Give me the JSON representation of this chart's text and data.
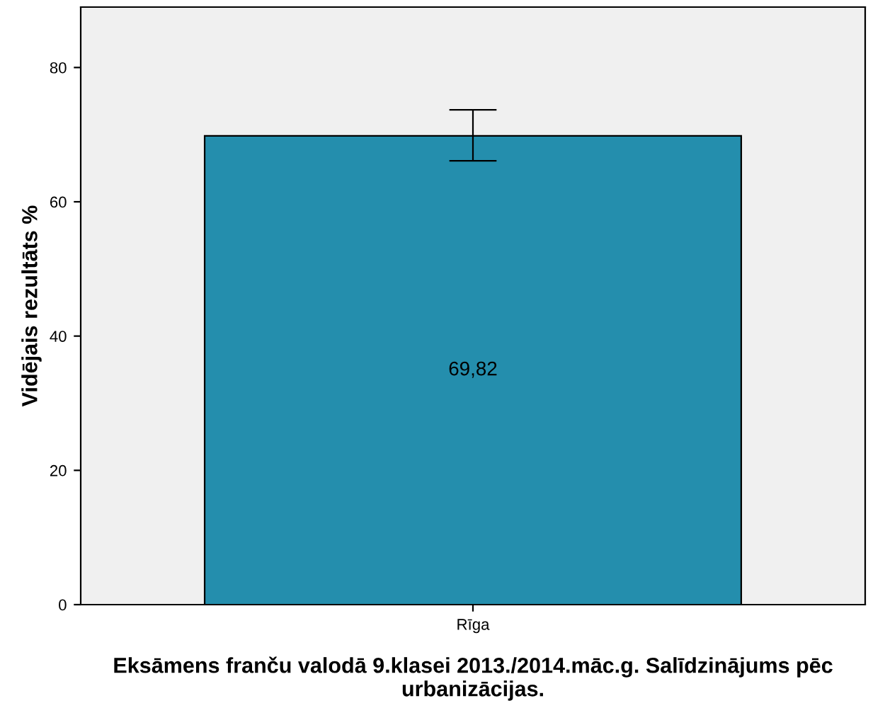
{
  "chart_data": {
    "type": "bar",
    "xlabel": "Eksāmens franču valodā 9.klasei 2013./2014.māc.g. Salīdzinājums pēc urbanizācijas.",
    "ylabel": "Vidējais rezultāts %",
    "categories": [
      "Rīga"
    ],
    "values": [
      69.82
    ],
    "value_labels": [
      "69,82"
    ],
    "errors": [
      [
        66.1,
        73.7
      ]
    ],
    "color": "#248ead",
    "ylim": [
      0,
      89
    ],
    "yticks": [
      0,
      20,
      40,
      60,
      80
    ],
    "grid": false
  }
}
